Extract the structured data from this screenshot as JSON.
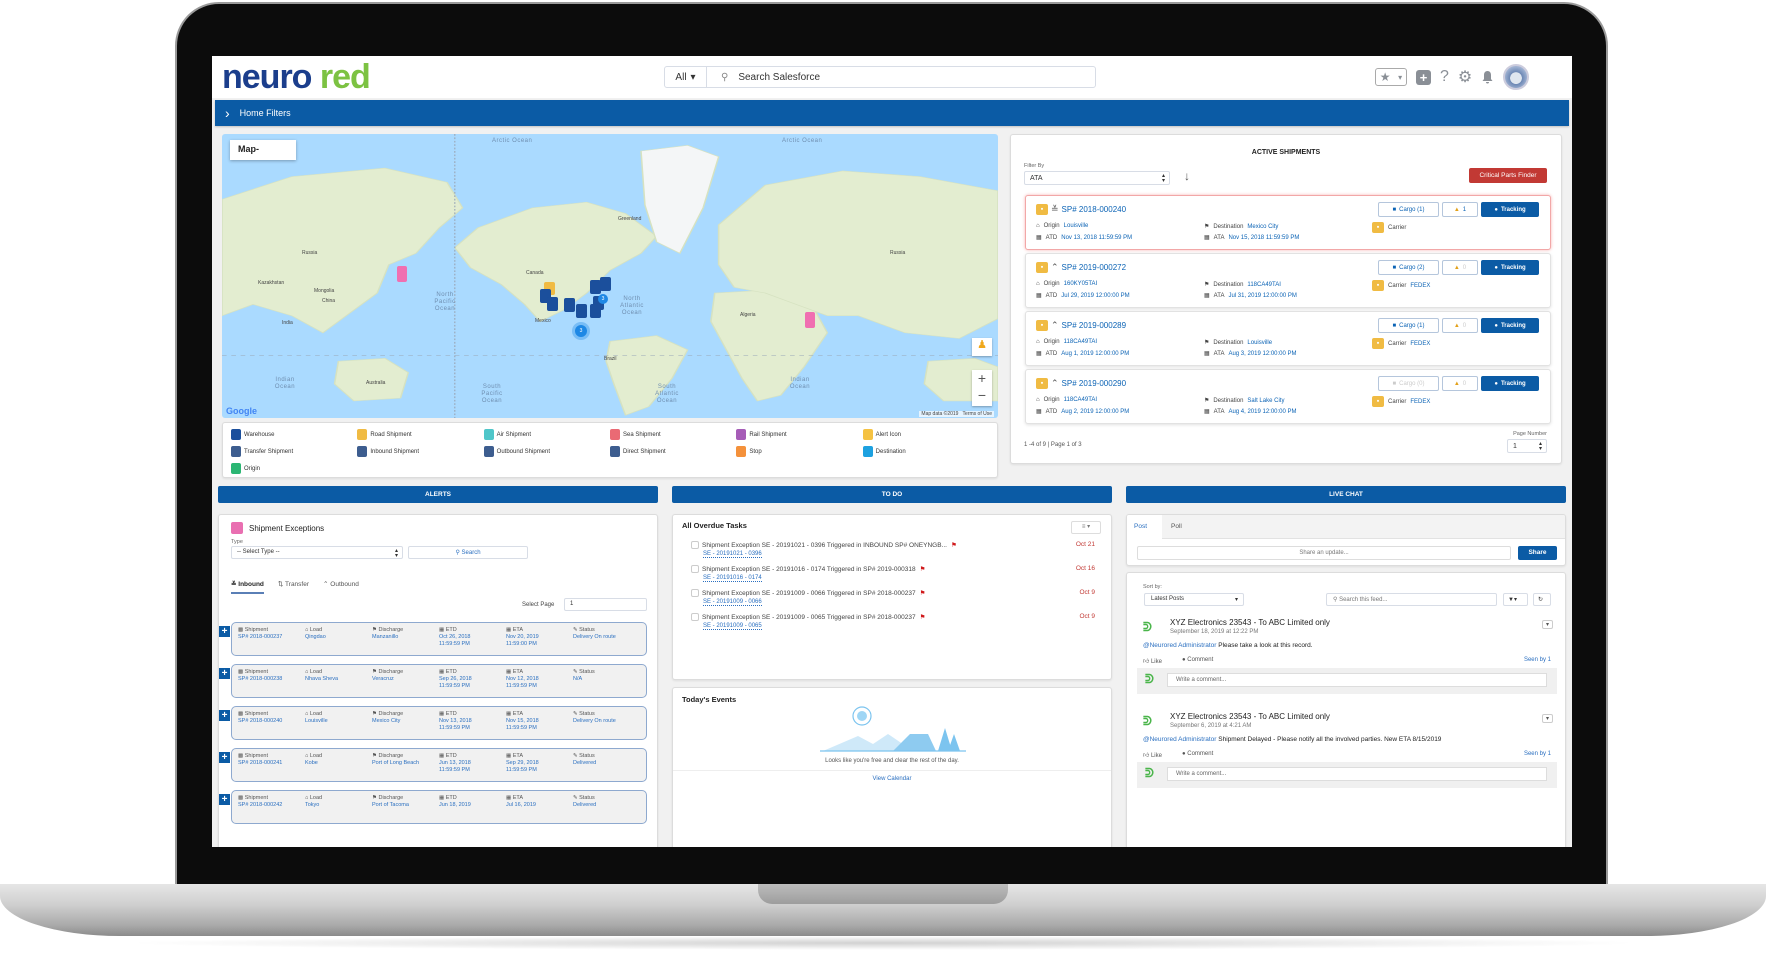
{
  "header": {
    "logo": {
      "part1": "neuro",
      "part2": "red"
    },
    "search": {
      "scope": "All",
      "placeholder": "Search Salesforce"
    },
    "icons": [
      "star-icon",
      "plus-icon",
      "help-icon",
      "gear-icon",
      "bell-icon",
      "avatar"
    ]
  },
  "home_filters": {
    "label": "Home Filters"
  },
  "map": {
    "button_label": "Map-",
    "ocean_labels": {
      "arctic1": "Arctic Ocean",
      "arctic2": "Arctic Ocean",
      "npac": "North Pacific Ocean",
      "natl": "North Atlantic Ocean",
      "spac": "South Pacific Ocean",
      "satl": "South Atlantic Ocean",
      "ind1": "Indian Ocean",
      "ind2": "Indian Ocean"
    },
    "land_labels": {
      "greenland": "Greenland",
      "canada": "Canada",
      "russia1": "Russia",
      "russia2": "Russia",
      "china": "China",
      "brazil": "Brazil",
      "australia": "Australia",
      "algeria": "Algeria",
      "mexico": "Mexico",
      "kazakhstan": "Kazakhstan",
      "india": "India",
      "mongolia": "Mongolia"
    },
    "cluster_count": "3",
    "footer": {
      "google": "Google",
      "map_data": "Map data ©2019",
      "terms": "Terms of Use"
    },
    "legend": [
      {
        "label": "Warehouse",
        "icon": "warehouse-icon",
        "color": "#1b4f9c"
      },
      {
        "label": "Road Shipment",
        "icon": "truck-icon",
        "color": "#f0bb43"
      },
      {
        "label": "Air Shipment",
        "icon": "plane-icon",
        "color": "#4fc6c9"
      },
      {
        "label": "Sea Shipment",
        "icon": "ship-icon",
        "color": "#ea6a74"
      },
      {
        "label": "Rail Shipment",
        "icon": "train-icon",
        "color": "#a65cb7"
      },
      {
        "label": "Alert Icon",
        "icon": "warning-icon",
        "color": "#f5c242"
      },
      {
        "label": "Transfer Shipment",
        "icon": "transfer-icon",
        "color": "#3d5d8f"
      },
      {
        "label": "Inbound Shipment",
        "icon": "inbound-icon",
        "color": "#3d5d8f"
      },
      {
        "label": "Outbound Shipment",
        "icon": "outbound-icon",
        "color": "#3d5d8f"
      },
      {
        "label": "Direct Shipment",
        "icon": "target-icon",
        "color": "#3d5d8f"
      },
      {
        "label": "Stop",
        "icon": "stop-icon",
        "color": "#f4913b"
      },
      {
        "label": "Destination",
        "icon": "destination-flag-icon",
        "color": "#1da1e0"
      },
      {
        "label": "Origin",
        "icon": "origin-pin-icon",
        "color": "#2bb673"
      }
    ]
  },
  "active_shipments": {
    "title": "ACTIVE SHIPMENTS",
    "filter_label": "Filter By",
    "filter_value": "ATA",
    "critical_button": "Critical Parts Finder",
    "pagination": "1 -4 of 9 | Page 1 of 3",
    "page_number_label": "Page Number",
    "page_number_value": "1",
    "labels": {
      "origin": "Origin",
      "destination": "Destination",
      "carrier": "Carrier",
      "atd": "ATD",
      "ata": "ATA",
      "tracking": "Tracking"
    },
    "cards": [
      {
        "id": "SP# 2018-000240",
        "direction": "inbound",
        "origin": "Louisville",
        "destination": "Mexico City",
        "carrier": "",
        "atd": "Nov 13, 2018 11:59:59 PM",
        "ata": "Nov 15, 2018 11:59:59 PM",
        "cargo": "Cargo (1)",
        "alerts": "1",
        "highlighted": true,
        "cargo_disabled": false,
        "alerts_zero": false
      },
      {
        "id": "SP# 2019-000272",
        "direction": "outbound",
        "origin": "160KY05TAI",
        "destination": "118CA49TAI",
        "carrier": "FEDEX",
        "atd": "Jul 29, 2019 12:00:00 PM",
        "ata": "Jul 31, 2019 12:00:00 PM",
        "cargo": "Cargo (2)",
        "alerts": "0",
        "highlighted": false,
        "cargo_disabled": false,
        "alerts_zero": true
      },
      {
        "id": "SP# 2019-000289",
        "direction": "outbound",
        "origin": "118CA49TAI",
        "destination": "Louisville",
        "carrier": "FEDEX",
        "atd": "Aug 1, 2019 12:00:00 PM",
        "ata": "Aug 3, 2019 12:00:00 PM",
        "cargo": "Cargo (1)",
        "alerts": "0",
        "highlighted": false,
        "cargo_disabled": false,
        "alerts_zero": true
      },
      {
        "id": "SP# 2019-000290",
        "direction": "outbound",
        "origin": "118CA49TAI",
        "destination": "Salt Lake City",
        "carrier": "FEDEX",
        "atd": "Aug 2, 2019 12:00:00 PM",
        "ata": "Aug 4, 2019 12:00:00 PM",
        "cargo": "Cargo (0)",
        "alerts": "0",
        "highlighted": false,
        "cargo_disabled": true,
        "alerts_zero": true
      }
    ]
  },
  "sections": {
    "alerts": "ALERTS",
    "todo": "TO DO",
    "chat": "LIVE CHAT"
  },
  "alerts": {
    "title": "Shipment Exceptions",
    "type_label": "Type",
    "type_value": "-- Select Type --",
    "search_label": "Search",
    "tabs": [
      "Inbound",
      "Transfer",
      "Outbound"
    ],
    "select_page_label": "Select Page",
    "select_page_value": "1",
    "col_labels": {
      "shipment": "Shipment",
      "load": "Load",
      "discharge": "Discharge",
      "etd": "ETD",
      "eta": "ETA",
      "status": "Status"
    },
    "rows": [
      {
        "shipment": "SP# 2018-000237",
        "load": "Qingdao",
        "discharge": "Manzanillo",
        "etd": "Oct 26, 2018",
        "etd_time": "11:59:59 PM",
        "eta": "Nov 20, 2019",
        "eta_time": "11:59:00 PM",
        "status": "Delivery On route"
      },
      {
        "shipment": "SP# 2018-000238",
        "load": "Nhava Sheva",
        "discharge": "Veracruz",
        "etd": "Sep 26, 2018",
        "etd_time": "11:59:59 PM",
        "eta": "Nov 12, 2018",
        "eta_time": "11:59:59 PM",
        "status": "N/A"
      },
      {
        "shipment": "SP# 2018-000240",
        "load": "Louisville",
        "discharge": "Mexico City",
        "etd": "Nov 13, 2018",
        "etd_time": "11:59:59 PM",
        "eta": "Nov 15, 2018",
        "eta_time": "11:59:59 PM",
        "status": "Delivery On route"
      },
      {
        "shipment": "SP# 2018-000241",
        "load": "Kobe",
        "discharge": "Port of Long Beach",
        "etd": "Jun 13, 2018",
        "etd_time": "11:59:59 PM",
        "eta": "Sep 29, 2018",
        "eta_time": "11:59:59 PM",
        "status": "Delivered"
      },
      {
        "shipment": "SP# 2018-000242",
        "load": "Tokyo",
        "discharge": "Port of Tacoma",
        "etd": "Jun 18, 2019",
        "etd_time": "",
        "eta": "Jul 16, 2019",
        "eta_time": "",
        "status": "Delivered"
      }
    ]
  },
  "todo": {
    "title": "All Overdue Tasks",
    "tasks": [
      {
        "text": "Shipment Exception SE - 20191021 - 0396 Triggered in INBOUND SP# ONEYNGB...",
        "link": "SE - 20191021 - 0396",
        "date": "Oct 21"
      },
      {
        "text": "Shipment Exception SE - 20191016 - 0174 Triggered in SP# 2019-000318",
        "link": "SE - 20191016 - 0174",
        "date": "Oct 16"
      },
      {
        "text": "Shipment Exception SE - 20191009 - 0066 Triggered in SP# 2018-000237",
        "link": "SE - 20191009 - 0066",
        "date": "Oct 9"
      },
      {
        "text": "Shipment Exception SE - 20191009 - 0065 Triggered in SP# 2018-000237",
        "link": "SE - 20191009 - 0065",
        "date": "Oct 9"
      }
    ],
    "events_title": "Today's Events",
    "events_empty": "Looks like you're free and clear the rest of the day.",
    "view_calendar": "View Calendar"
  },
  "chat": {
    "tabs": [
      "Post",
      "Poll"
    ],
    "share_placeholder": "Share an update...",
    "share_button": "Share",
    "sort_label": "Sort by:",
    "sort_value": "Latest Posts",
    "search_placeholder": "Search this feed...",
    "like": "Like",
    "comment": "Comment",
    "comment_placeholder": "Write a comment...",
    "posts": [
      {
        "author": "XYZ Electronics  23543  - To ABC Limited  only",
        "date": "September 18, 2019 at 12:22 PM",
        "mention": "@Neurored Administrator",
        "text": "Please take a look at this record.",
        "seen": "Seen by 1"
      },
      {
        "author": "XYZ Electronics  23543  - To ABC Limited  only",
        "date": "September 6, 2019 at 4:21 AM",
        "mention": "@Neurored Administrator",
        "text": "Shipment Delayed - Please notify all the involved parties. New ETA 8/15/2019",
        "seen": "Seen by 1"
      }
    ]
  }
}
